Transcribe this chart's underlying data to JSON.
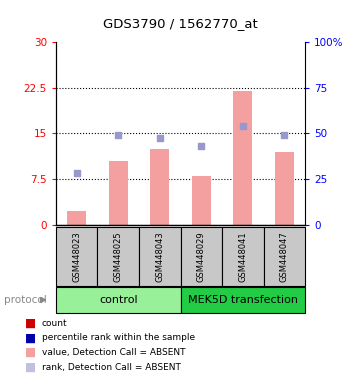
{
  "title": "GDS3790 / 1562770_at",
  "samples": [
    "GSM448023",
    "GSM448025",
    "GSM448043",
    "GSM448029",
    "GSM448041",
    "GSM448047"
  ],
  "bar_values": [
    2.2,
    10.5,
    12.5,
    8.0,
    22.0,
    12.0
  ],
  "dot_values": [
    8.5,
    14.8,
    14.2,
    13.0,
    16.3,
    14.8
  ],
  "bar_color": "#F4A0A0",
  "dot_color": "#9898CC",
  "left_ylim": [
    0,
    30
  ],
  "right_ylim": [
    0,
    100
  ],
  "left_yticks": [
    0,
    7.5,
    15,
    22.5,
    30
  ],
  "left_yticklabels": [
    "0",
    "7.5",
    "15",
    "22.5",
    "30"
  ],
  "right_yticks": [
    0,
    25,
    50,
    75,
    100
  ],
  "right_yticklabels": [
    "0",
    "25",
    "50",
    "75",
    "100%"
  ],
  "hlines": [
    7.5,
    15,
    22.5
  ],
  "control_color": "#98F098",
  "mek_color": "#22CC44",
  "sample_bg": "#C8C8C8",
  "legend_items": [
    {
      "color": "#CC0000",
      "label": "count"
    },
    {
      "color": "#0000AA",
      "label": "percentile rank within the sample"
    },
    {
      "color": "#F4A0A0",
      "label": "value, Detection Call = ABSENT"
    },
    {
      "color": "#C0C0E0",
      "label": "rank, Detection Call = ABSENT"
    }
  ],
  "protocol_label": "protocol",
  "title_fontsize": 9.5,
  "tick_fontsize": 7.5,
  "sample_fontsize": 6,
  "group_fontsize": 8,
  "legend_fontsize": 6.5
}
